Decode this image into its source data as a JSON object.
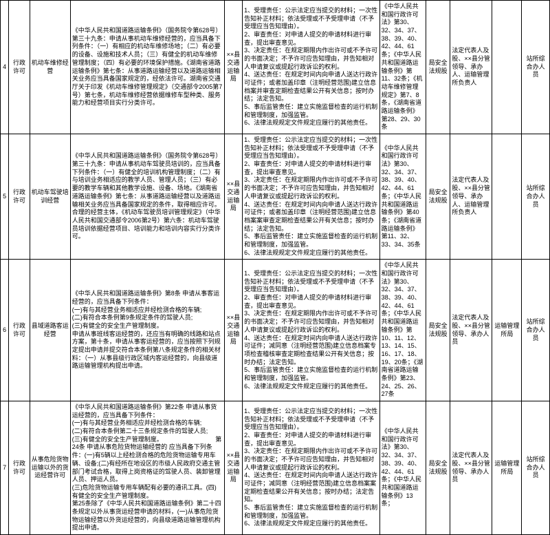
{
  "rows": [
    {
      "num": "4",
      "type": "行政许可",
      "name": "机动车维修经营",
      "basis": "《中华人民共和国道路运输条例》（国务院令第628号）第三十九条：申请从事机动车维修经营的，应当具备下列条件：（一）有相应的机动车维修场地；（二）有必要的设备、设施和技术人员；（三）有健全的机动车维修管理制度；（四）有必要的环境保护措施。《湖南省道路运输条例》第七条：从事道路运输经营以及道路运输相关业务应当具备国家规定的，经依法许可。湖南省交通厅关于印发《机动车维修管理规定》（交通部令2005第7号）第七条，机动车维修经营依据维修车型种类、服务能力和经营项目实行分类许可。",
      "org": "××县交通运输局",
      "resp": "1、受理责任：公示法定应当提交的材料；一次性告知补正材料；依法受理或不予受理申请（不予受理应当告知理由）。\n2、审查责任：对申请人提交的申请材料进行审查，提出审查意见。\n3、决定责任：在规定期限内作出许可或不予许可的书面决定；不予许可应告知理由，并告知相对人申请复议或提起行政诉讼的权利。\n4、送达责任：在规定时间内向申请人送达行政许可证件；或者加盖印章（注明经营范围)建立信息档案并审查定期检查结果公开有关信息；按时办结；法定告知。\n5、事后监管责任：建立实施监督检查的运行机制和管理制度，加强监管。\n6、法律法规规定文件规定应履行的其他责任。",
      "law": "《中华人民共和国行政许可法》第‌30、32、34、37、38、39、40、42、44、61条；《中华人民共和国道路运输条例》第11、32条；《机动车维修管理规定》第7、8条，《湖南省道路运输条例》第28、29、30条",
      "sec": "局安全法规股",
      "person": "法定代表人及股、××县分管领导、承办人、运输管理所负责人",
      "remark": "",
      "last": "站所综合办人员"
    },
    {
      "num": "5",
      "type": "行政许可",
      "name": "机动车驾驶培训经营",
      "basis": "《中华人民共和国道路运输条例》（国务院令第628号）第三十九条：申请从事机动车驾驶员培训的，应当具备下列条件：（一）有健全的培训机构管理制度；（二）有与培训业务相适应的教学人员、管理人员；（三）有必要的教学车辆和其他教学设施、设备、场地。《湖南省道路运输条例》第七条：从事道路运输经营以及道路运输相关业务应当具备国家规定的条件，取得相应许可。合理的经营主体，《机动车驾驶员培训管理规定》（中华人民共和国交通部令2006第2号）第六条：机动车驾驶员培训依据经营项目、培训能力和培训内容实行分类许可。",
      "org": "××县交通运输局",
      "resp": "1、受理责任：公示法定应当提交的材料；一次性告知补正材料；依法受理或不予受理申请（不予受理应当告知理由）。\n2、审查责任：对申请人提交的申请材料进行审查，提出审查意见。\n3、决定责任：在规定期限内作出许可或不予许可的书面决定；不予许可应告知理由，并告知相对人申请复议或提起行政诉讼的权利。\n4、送达责任：在规定时间内向申请人送达行政许可证件；或者加盖印章（注明经营范围)建立信息档案案审查定期检查结果公开有关信息；按时办结；法定告知。\n5、事后监管责任：建立实施监督检查的运行机制和管理制度，加强监管。\n6、法律法规规定文件规定应履行的其他责任。",
      "law": "《中华人民共和国行政许可法》第‌30、32、34、37、38、39、40、42、44、61条；《中华人民共和国道路运输条例》第40条；《湖南省道路运输条例》第11、32、33、34、35条",
      "sec": "局安全法规股",
      "person": "法定代表人及股、××县分管领导、承办人、运输管理所负责人",
      "remark": "",
      "last": "站所综合办人员"
    },
    {
      "num": "6",
      "type": "行政许可",
      "name": "县域道路客运经营",
      "basis": "《中华人民共和国道路运输条例》第8条 申请从事客运经营的，应当具备下列条件：\n(一)有与其经营业务相适应并经检测合格的车辆;\n(二)有符合本条例第9条规定条件的驾驶人员;\n(三)有健全的安全生产管理制度。\n申请从事班线客运经营的，还应当有明确的线路和站点方案，第十条，申请从事客运经营的，应当按照下列规定提出申请并提交符合本条例第八条规定条件的相关材料：（一）从事县级行政区域内客运经营的，向县级道路运输管理机构提出申请。",
      "org": "××县交通运输局",
      "resp": "1、受理责任：公示法定应当提交的材料；一次性告知补正材料；依法受理或不予受理申请（不予受理应当告知理由）。\n2、审查责任：对申请人提交的申请材料进行审查，提出审查意见。\n3、决定责任：在规定期限内作出许可或不予许可的书面决定；不予许可应告知理由，并告知相对人申请复议或提起行政诉讼的权利。\n4、送达责任：在规定时间内向申请人送达行政许可证件；减同意（注明经营范围)建立信息档案专项检查稽核审查定期检查结果公开有关信息；按时办结；法定告知。\n5、事后监管责任：建立实施监督检查的运行机制和管理制度，加强监管。\n6、法律法规规定文件规定应履行的其他责任。",
      "law": "《中华人民共和国行政许可法》第‌30、32、34、37、38、39、40、42、44、61条；《中华人民共和国道路运输条例》第10、11、12、13、14、15、16、17、18、19、20条；《湖南省道路运输条例》第23、24、25、26、27条",
      "sec": "局安全法规股",
      "person": "法定代表人及股、××县分管领导、承办人员",
      "remark": "运输管理所局",
      "last": "站所综合办人员"
    },
    {
      "num": "7",
      "type": "行政许可",
      "name": "从事危险货物运输以外的货运经营许可",
      "basis": "《中华人民共和国道路运输条例》第22条 申请从事货运经营的，应当具备下列条件：\n(一)有与其经营业务相适应并经检测合格的车辆;\n(二)有符合本条例第二十三条规定条件的驾驶人员;\n(三)有健全的安全生产管理制度。　　　　　　　　　第24条 申请从事危险货物运输经营的 应当具备下列条件：(一)有5辆以上经检测合格的危险货物运输专用车辆、设备;(二)有经所在地设区的市级人民政府交通主管部门考试合格，取得上岗资格证的驾驶人员、装卸管理人员、押运人员。\n(三)危险货物运输专用车辆配有必要的通讯工具。(四)有健全的安全生产管理制度。\n第25条‌除了《中华人民共和国道路运输条例》第二十四条规定以外从事货运经营申请的材料，(一)从事危险货物运输经营以外货运经营的，向县级道路运输管理机构提出申请。",
      "org": "××县交通运输局",
      "resp": "1、受理责任：公示法定应当提交的材料；一次性告知补正材料；依法受理或不予受理申请（不予受理应当告知理由）。\n2、审查责任：对申请人提交的申请材料进行审查，提出审查意见。\n3、决定责任：在规定期限内作出许可或不予许可的书面决定；不予许可应告知理由，并告知相对人申请复议或提起行政诉讼的权利。\n4、送达责任：在规定时间内向申请人送达行政许可证件；减同意（注明经营范围)建立信息档案案定期检查结果公开有关信息；按时办结；法定告知。\n5、事后监管责任：建立实施监督检查的运行机制和管理制度，加强监管。\n6、法律法规规定文件规定应履行的其他责任。",
      "law": "《中华人民共和国行政许可法》第‌30、32、34、37、38、39、40、42、44、61条；《中华人民共和国道路运输条例》13条；",
      "sec": "局安全法规股",
      "person": "法定代表人及股、××县分管领导、承办人员",
      "remark": "运输管理所局",
      "last": "站所综合办人员"
    }
  ]
}
